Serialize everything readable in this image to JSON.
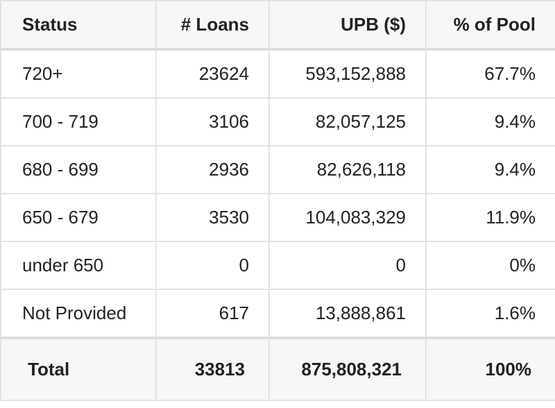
{
  "table": {
    "header": [
      "Status",
      "# Loans",
      "UPB ($)",
      "% of Pool"
    ],
    "rows": [
      [
        "720+",
        "23624",
        "593,152,888",
        "67.7%"
      ],
      [
        "700 - 719",
        "3106",
        "82,057,125",
        "9.4%"
      ],
      [
        "680 - 699",
        "2936",
        "82,626,118",
        "9.4%"
      ],
      [
        "650 - 679",
        "3530",
        "104,083,329",
        "11.9%"
      ],
      [
        "under 650",
        "0",
        "0",
        "0%"
      ],
      [
        "Not Provided",
        "617",
        "13,888,861",
        "1.6%"
      ]
    ],
    "total": [
      "Total",
      "33813",
      "875,808,321",
      "100%"
    ]
  }
}
